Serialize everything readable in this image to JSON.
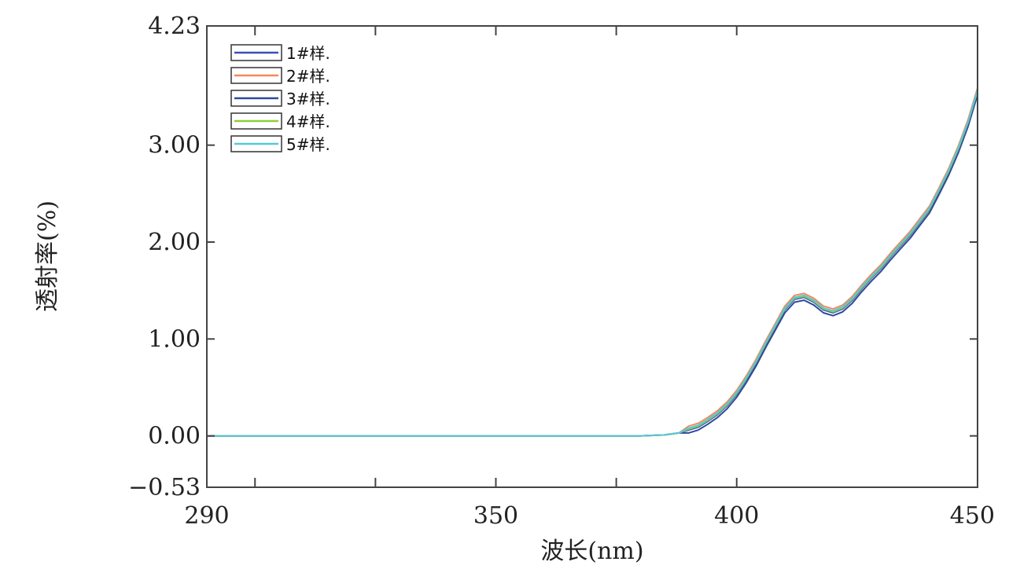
{
  "chart_data": {
    "type": "line",
    "title": "",
    "xlabel": "波长(nm)",
    "ylabel": "透射率(%)",
    "xlim": [
      290,
      450
    ],
    "ylim": [
      -0.53,
      4.23
    ],
    "xticks": [
      290,
      350,
      400,
      450
    ],
    "xtick_labels": [
      "290",
      "350",
      "400",
      "450"
    ],
    "yticks": [
      -0.53,
      0.0,
      1.0,
      2.0,
      3.0,
      4.23
    ],
    "ytick_labels": [
      "−0.53",
      "0.00",
      "1.00",
      "2.00",
      "3.00",
      "4.23"
    ],
    "legend_position": "top-left",
    "grid": false,
    "x": [
      290,
      300,
      320,
      340,
      360,
      380,
      385,
      388,
      390,
      392,
      394,
      396,
      398,
      400,
      402,
      404,
      406,
      408,
      410,
      412,
      414,
      416,
      418,
      420,
      422,
      424,
      426,
      428,
      430,
      432,
      434,
      436,
      438,
      440,
      442,
      444,
      446,
      448,
      450
    ],
    "series": [
      {
        "name": "1#样.",
        "color": "#3b50b8",
        "offset": 0.0
      },
      {
        "name": "2#样.",
        "color": "#f08a5d",
        "offset": 0.04
      },
      {
        "name": "3#样.",
        "color": "#2f4a9c",
        "offset": -0.03
      },
      {
        "name": "4#样.",
        "color": "#8fce3c",
        "offset": 0.01
      },
      {
        "name": "5#样.",
        "color": "#58c7d9",
        "offset": 0.02
      }
    ],
    "base_values": [
      0.0,
      0.0,
      0.0,
      0.0,
      0.0,
      0.0,
      0.01,
      0.03,
      0.06,
      0.09,
      0.15,
      0.22,
      0.31,
      0.43,
      0.58,
      0.75,
      0.94,
      1.12,
      1.3,
      1.41,
      1.43,
      1.38,
      1.3,
      1.27,
      1.31,
      1.4,
      1.52,
      1.63,
      1.73,
      1.85,
      1.96,
      2.07,
      2.2,
      2.33,
      2.52,
      2.72,
      2.95,
      3.22,
      3.55
    ]
  }
}
